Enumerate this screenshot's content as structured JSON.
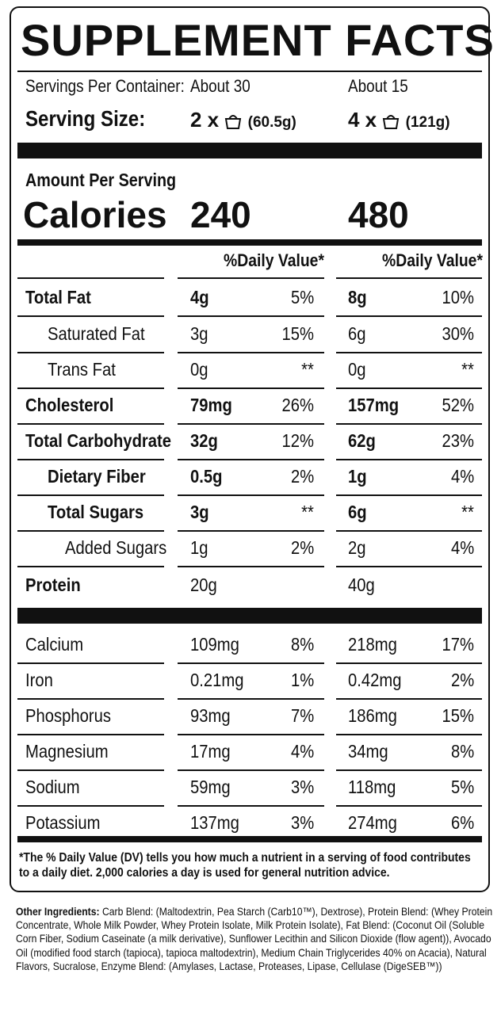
{
  "title": "SUPPLEMENT FACTS",
  "servings": {
    "servings_label": "Servings Per Container:",
    "serving_size_label": "Serving Size:",
    "col1_servings": "About 30",
    "col2_servings": "About 15",
    "col1_size_prefix": "2 x",
    "col1_size_suffix": "(60.5g)",
    "col2_size_prefix": "4 x",
    "col2_size_suffix": "(121g)"
  },
  "calories": {
    "amount_label": "Amount Per Serving",
    "label": "Calories",
    "col1": "240",
    "col2": "480"
  },
  "dv_header": "%Daily Value*",
  "nutrients": [
    {
      "name": "Total Fat",
      "a1": "4g",
      "p1": "5%",
      "a2": "8g",
      "p2": "10%"
    },
    {
      "name": "Saturated Fat",
      "a1": "3g",
      "p1": "15%",
      "a2": "6g",
      "p2": "30%"
    },
    {
      "name": "Trans Fat",
      "a1": "0g",
      "p1": "**",
      "a2": "0g",
      "p2": "**"
    },
    {
      "name": "Cholesterol",
      "a1": "79mg",
      "p1": "26%",
      "a2": "157mg",
      "p2": "52%"
    },
    {
      "name": "Total Carbohydrate",
      "a1": "32g",
      "p1": "12%",
      "a2": "62g",
      "p2": "23%"
    },
    {
      "name": "Dietary Fiber",
      "a1": "0.5g",
      "p1": "2%",
      "a2": "1g",
      "p2": "4%"
    },
    {
      "name": "Total Sugars",
      "a1": "3g",
      "p1": "**",
      "a2": "6g",
      "p2": "**"
    },
    {
      "name": "Added Sugars",
      "a1": "1g",
      "p1": "2%",
      "a2": "2g",
      "p2": "4%"
    },
    {
      "name": "Protein",
      "a1": "20g",
      "p1": "",
      "a2": "40g",
      "p2": ""
    }
  ],
  "minerals": [
    {
      "name": "Calcium",
      "a1": "109mg",
      "p1": "8%",
      "a2": "218mg",
      "p2": "17%"
    },
    {
      "name": "Iron",
      "a1": "0.21mg",
      "p1": "1%",
      "a2": "0.42mg",
      "p2": "2%"
    },
    {
      "name": "Phosphorus",
      "a1": "93mg",
      "p1": "7%",
      "a2": "186mg",
      "p2": "15%"
    },
    {
      "name": "Magnesium",
      "a1": "17mg",
      "p1": "4%",
      "a2": "34mg",
      "p2": "8%"
    },
    {
      "name": "Sodium",
      "a1": "59mg",
      "p1": "3%",
      "a2": "118mg",
      "p2": "5%"
    },
    {
      "name": "Potassium",
      "a1": "137mg",
      "p1": "3%",
      "a2": "274mg",
      "p2": "6%"
    }
  ],
  "footnote": "*The % Daily Value (DV) tells you how much a nutrient in a serving of food contributes to a daily diet. 2,000 calories a day is used for general nutrition advice.",
  "ingredients": {
    "label": "Other Ingredients:",
    "text": " Carb Blend: (Maltodextrin, Pea Starch (Carb10™), Dextrose), Protein Blend: (Whey Protein Concentrate, Whole Milk Powder, Whey Protein Isolate, Milk Protein Isolate), Fat Blend: (Coconut Oil (Soluble Corn Fiber, Sodium Caseinate (a milk derivative), Sunflower Lecithin and Silicon Dioxide (flow agent)), Avocado Oil (modified food starch (tapioca), tapioca maltodextrin), Medium Chain Triglycerides 40% on Acacia), Natural Flavors, Sucralose, Enzyme Blend: (Amylases, Lactase, Proteases, Lipase, Cellulase (DigeSEB™))"
  }
}
